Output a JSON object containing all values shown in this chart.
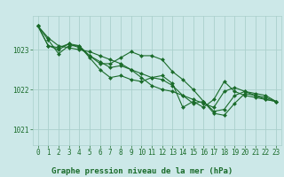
{
  "title": "Graphe pression niveau de la mer (hPa)",
  "bg_color": "#cce8e8",
  "grid_color": "#aad0cc",
  "line_color": "#1a6b2a",
  "marker_color": "#1a6b2a",
  "xlim": [
    -0.5,
    23.5
  ],
  "ylim": [
    1020.6,
    1023.85
  ],
  "yticks": [
    1021,
    1022,
    1023
  ],
  "xticks": [
    0,
    1,
    2,
    3,
    4,
    5,
    6,
    7,
    8,
    9,
    10,
    11,
    12,
    13,
    14,
    15,
    16,
    17,
    18,
    19,
    20,
    21,
    22,
    23
  ],
  "series": [
    [
      1023.6,
      1023.3,
      1023.1,
      1023.05,
      1023.0,
      1022.95,
      1022.85,
      1022.75,
      1022.65,
      1022.5,
      1022.3,
      1022.1,
      1022.0,
      1021.95,
      1021.85,
      1021.75,
      1021.65,
      1021.55,
      1021.95,
      1022.05,
      1021.95,
      1021.85,
      1021.8,
      1021.7
    ],
    [
      1023.6,
      1023.25,
      1022.9,
      1023.1,
      1023.1,
      1022.8,
      1022.5,
      1022.3,
      1022.35,
      1022.25,
      1022.2,
      1022.3,
      1022.35,
      1022.15,
      1021.55,
      1021.7,
      1021.55,
      1021.75,
      1022.2,
      1021.95,
      1021.85,
      1021.8,
      1021.75,
      1021.7
    ],
    [
      1023.6,
      1023.1,
      1023.05,
      1023.15,
      1023.05,
      1022.85,
      1022.65,
      1022.65,
      1022.8,
      1022.95,
      1022.85,
      1022.85,
      1022.75,
      1022.45,
      1022.25,
      1022.0,
      1021.7,
      1021.4,
      1021.35,
      1021.65,
      1021.9,
      1021.85,
      1021.75,
      1021.7
    ],
    [
      1023.6,
      1023.1,
      1023.0,
      1023.15,
      1023.1,
      1022.85,
      1022.7,
      1022.55,
      1022.6,
      1022.5,
      1022.4,
      1022.3,
      1022.25,
      1022.1,
      1021.85,
      1021.65,
      1021.7,
      1021.45,
      1021.5,
      1021.85,
      1021.95,
      1021.9,
      1021.85,
      1021.7
    ]
  ],
  "title_fontsize": 6.5,
  "tick_fontsize": 5.5,
  "linewidth": 0.8,
  "markersize": 2.0
}
